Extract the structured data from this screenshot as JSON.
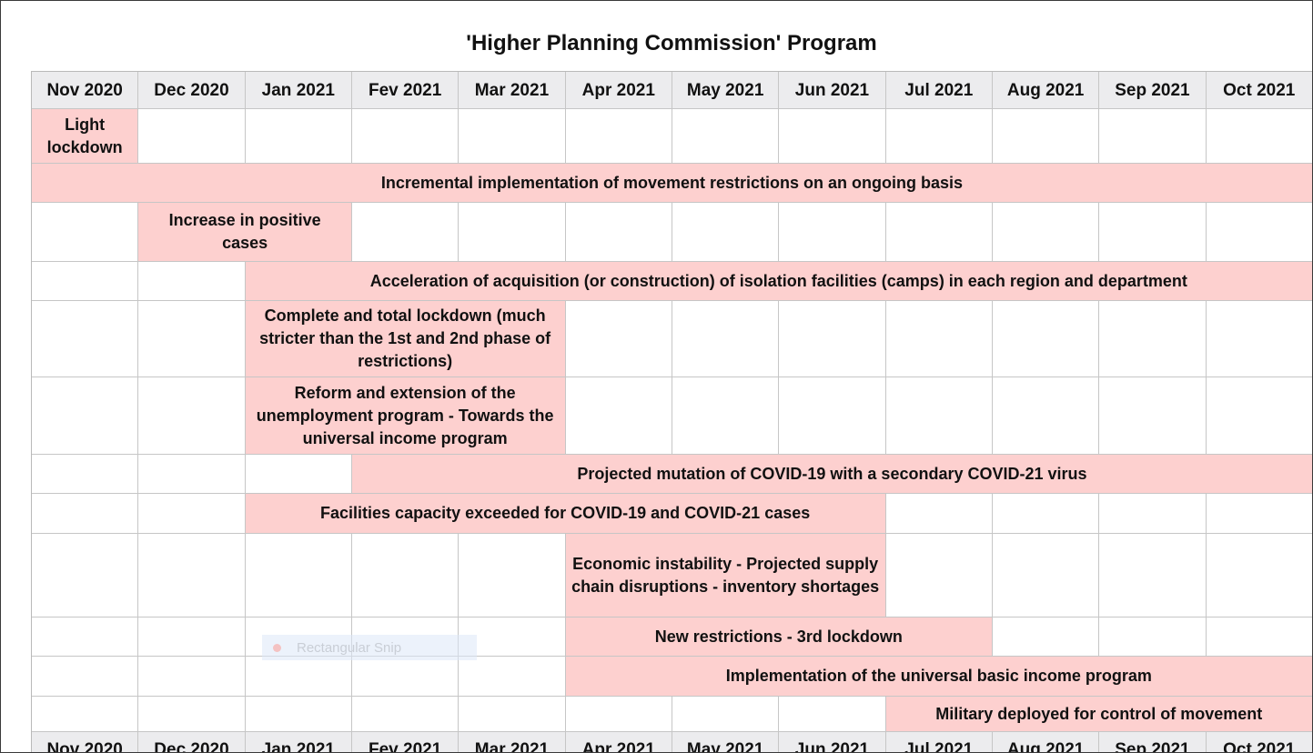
{
  "title": "'Higher Planning Commission' Program",
  "months": [
    "Nov 2020",
    "Dec 2020",
    "Jan 2021",
    "Fev 2021",
    "Mar 2021",
    "Apr 2021",
    "May 2021",
    "Jun 2021",
    "Jul 2021",
    "Aug 2021",
    "Sep 2021",
    "Oct 2021"
  ],
  "events": [
    {
      "label": "Light lockdown",
      "start_month": "Nov 2020",
      "end_month": "Nov 2020"
    },
    {
      "label": "Incremental implementation of movement restrictions on an ongoing basis",
      "start_month": "Nov 2020",
      "end_month": "Oct 2021"
    },
    {
      "label": "Increase in positive cases",
      "start_month": "Dec 2020",
      "end_month": "Jan 2021"
    },
    {
      "label": "Acceleration of acquisition (or construction) of isolation facilities (camps) in each region and department",
      "start_month": "Jan 2021",
      "end_month": "Oct 2021"
    },
    {
      "label": "Complete and total lockdown (much stricter than the 1st and 2nd phase of restrictions)",
      "start_month": "Jan 2021",
      "end_month": "Mar 2021"
    },
    {
      "label": "Reform and extension of the unemployment program - Towards the universal income program",
      "start_month": "Jan 2021",
      "end_month": "Mar 2021"
    },
    {
      "label": "Projected mutation of COVID-19 with a secondary COVID-21 virus",
      "start_month": "Fev 2021",
      "end_month": "Oct 2021"
    },
    {
      "label": "Facilities capacity exceeded for COVID-19 and COVID-21 cases",
      "start_month": "Jan 2021",
      "end_month": "Jun 2021"
    },
    {
      "label": "Economic instability - Projected supply chain disruptions - inventory shortages",
      "start_month": "Apr 2021",
      "end_month": "Jun 2021"
    },
    {
      "label": "New restrictions - 3rd lockdown",
      "start_month": "Apr 2021",
      "end_month": "Jul 2021"
    },
    {
      "label": "Implementation of the universal basic income program",
      "start_month": "Apr 2021",
      "end_month": "Oct 2021"
    },
    {
      "label": "Military deployed for control of movement",
      "start_month": "Jul 2021",
      "end_month": "Oct 2021"
    }
  ],
  "overlay": {
    "label": "Rectangular Snip"
  },
  "colors": {
    "event_fill": "#fdd0cf",
    "header_fill": "#ececee",
    "grid_line": "#c6c6c6"
  }
}
